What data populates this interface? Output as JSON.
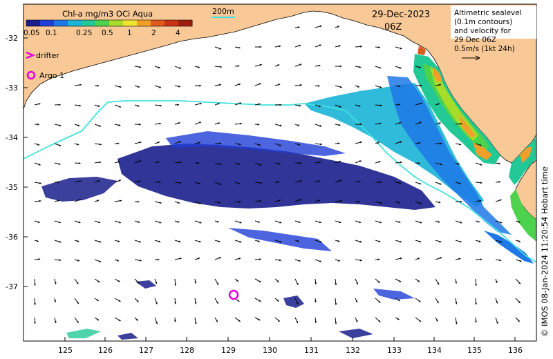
{
  "map": {
    "date": "29-Dec-2023",
    "time": "06Z",
    "colorbar": {
      "title": "Chl-a mg/m3 OCi Aqua",
      "ticks": [
        "0.05",
        "0.1",
        "0.25",
        "0.5",
        "1",
        "2",
        "4"
      ],
      "colors": [
        "#1a1f8c",
        "#1f3fd6",
        "#1e78e6",
        "#19b4d6",
        "#22c896",
        "#4cd24c",
        "#a8dc2a",
        "#f0e632",
        "#f0a028",
        "#e05a1e",
        "#c83214",
        "#a02010"
      ]
    },
    "isobath_label": "200m",
    "legend": {
      "drifter": "drifter",
      "argo": "Argo 1"
    },
    "altimetry_note": [
      "Altimetric sealevel",
      "(0.1m contours)",
      "and velocity for",
      "29 Dec 06Z",
      "0.5m/s (1kt 24h)"
    ],
    "lat_ticks": [
      "-32",
      "-33",
      "-34",
      "-35",
      "-36",
      "-37"
    ],
    "lon_ticks": [
      "125",
      "126",
      "127",
      "128",
      "129",
      "130",
      "131",
      "132",
      "133",
      "134",
      "135",
      "136"
    ],
    "credit": "© IMOS 08-Jan-2024 11:20:54 Hobart time",
    "colors": {
      "land": "#f8c896",
      "isobath": "#40e0e0",
      "argo": "#e000e0",
      "arrows": "#000000"
    }
  }
}
